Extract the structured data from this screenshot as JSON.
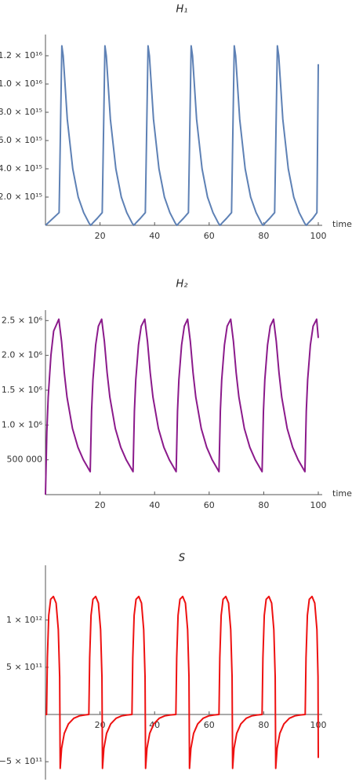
{
  "chart_data": [
    {
      "type": "line",
      "title": "H₁",
      "xlabel": "time",
      "color": "#5e81b5",
      "xlim": [
        0,
        100
      ],
      "ylim": [
        0,
        1.35e+16
      ],
      "xticks": [
        20,
        40,
        60,
        80,
        100
      ],
      "yticks": [
        {
          "value": 2000000000000000.0,
          "label": "2.0 × 10¹⁵"
        },
        {
          "value": 4000000000000000.0,
          "label": "4.0 × 10¹⁵"
        },
        {
          "value": 6000000000000000.0,
          "label": "6.0 × 10¹⁵"
        },
        {
          "value": 8000000000000000.0,
          "label": "8.0 × 10¹⁵"
        },
        {
          "value": 1e+16,
          "label": "1.0 × 10¹⁶"
        },
        {
          "value": 1.2e+16,
          "label": "1.2 × 10¹⁶"
        }
      ],
      "x": [
        0,
        5,
        6,
        6.5,
        7,
        8,
        10,
        12,
        14,
        16,
        16.6,
        17.5,
        19,
        20.8,
        21.8,
        22.3,
        22.8,
        23.8,
        25.8,
        27.8,
        29.8,
        31.8,
        32.4,
        33.3,
        34.8,
        36.6,
        37.6,
        38.1,
        38.6,
        39.6,
        41.6,
        43.6,
        45.6,
        47.6,
        48.2,
        49.1,
        50.6,
        52.4,
        53.4,
        53.9,
        54.4,
        55.4,
        57.4,
        59.4,
        61.4,
        63.4,
        64,
        64.9,
        66.4,
        68.2,
        69.2,
        69.7,
        70.2,
        71.2,
        73.2,
        75.2,
        77.2,
        79.2,
        79.8,
        80.7,
        82.2,
        84,
        85,
        85.5,
        86,
        87,
        89,
        91,
        93,
        95,
        95.6,
        96.5,
        98,
        99.5,
        100
      ],
      "values": [
        0,
        900000000000000.0,
        1.27e+16,
        1.2e+16,
        1.05e+16,
        7500000000000000.0,
        4000000000000000.0,
        2000000000000000.0,
        900000000000000.0,
        150000000000000.0,
        0,
        200000000000000.0,
        500000000000000.0,
        900000000000000.0,
        1.27e+16,
        1.2e+16,
        1.05e+16,
        7500000000000000.0,
        4000000000000000.0,
        2000000000000000.0,
        900000000000000.0,
        150000000000000.0,
        0,
        200000000000000.0,
        500000000000000.0,
        900000000000000.0,
        1.27e+16,
        1.2e+16,
        1.05e+16,
        7500000000000000.0,
        4000000000000000.0,
        2000000000000000.0,
        900000000000000.0,
        150000000000000.0,
        0,
        200000000000000.0,
        500000000000000.0,
        900000000000000.0,
        1.27e+16,
        1.2e+16,
        1.05e+16,
        7500000000000000.0,
        4000000000000000.0,
        2000000000000000.0,
        900000000000000.0,
        150000000000000.0,
        0,
        200000000000000.0,
        500000000000000.0,
        900000000000000.0,
        1.27e+16,
        1.2e+16,
        1.05e+16,
        7500000000000000.0,
        4000000000000000.0,
        2000000000000000.0,
        900000000000000.0,
        150000000000000.0,
        0,
        200000000000000.0,
        500000000000000.0,
        900000000000000.0,
        1.27e+16,
        1.2e+16,
        1.05e+16,
        7500000000000000.0,
        4000000000000000.0,
        2000000000000000.0,
        900000000000000.0,
        150000000000000.0,
        0,
        200000000000000.0,
        500000000000000.0,
        900000000000000.0,
        1.14e+16
      ]
    },
    {
      "type": "line",
      "title": "H₂",
      "xlabel": "time",
      "color": "#8b1a8b",
      "xlim": [
        0,
        100
      ],
      "ylim": [
        0,
        2650000.0
      ],
      "xticks": [
        20,
        40,
        60,
        80,
        100
      ],
      "yticks": [
        {
          "value": 500000,
          "label": "500 000"
        },
        {
          "value": 1000000,
          "label": "1.0 × 10⁶"
        },
        {
          "value": 1500000,
          "label": "1.5 × 10⁶"
        },
        {
          "value": 2000000,
          "label": "2.0 × 10⁶"
        },
        {
          "value": 2500000,
          "label": "2.5 × 10⁶"
        }
      ],
      "x": [
        0,
        0.5,
        1,
        2,
        3,
        4.9,
        5.9,
        6.9,
        7.9,
        9.9,
        11.9,
        13.9,
        16.4,
        16.9,
        17.4,
        18.4,
        19.4,
        20.6,
        21.6,
        22.6,
        23.6,
        25.6,
        27.6,
        29.6,
        32.1,
        32.6,
        33.1,
        34.1,
        35.1,
        36.4,
        37.4,
        38.4,
        39.4,
        41.4,
        43.4,
        45.4,
        47.9,
        48.4,
        48.9,
        49.9,
        50.9,
        52.1,
        53.1,
        54.1,
        55.1,
        57.1,
        59.1,
        61.1,
        63.6,
        64.1,
        64.6,
        65.6,
        66.6,
        67.9,
        68.9,
        69.9,
        70.9,
        72.9,
        74.9,
        76.9,
        79.4,
        79.9,
        80.4,
        81.4,
        82.4,
        83.6,
        84.6,
        85.6,
        86.6,
        88.6,
        90.6,
        92.6,
        95.1,
        95.6,
        96.1,
        97.1,
        98.1,
        99.4,
        100
      ],
      "values": [
        0,
        900000,
        1400000,
        2000000,
        2350000,
        2520000,
        2200000,
        1750000,
        1400000,
        950000,
        680000,
        500000,
        330000,
        1200000,
        1650000,
        2150000,
        2420000,
        2520000,
        2200000,
        1750000,
        1400000,
        950000,
        680000,
        500000,
        330000,
        1200000,
        1650000,
        2150000,
        2420000,
        2520000,
        2200000,
        1750000,
        1400000,
        950000,
        680000,
        500000,
        330000,
        1200000,
        1650000,
        2150000,
        2420000,
        2520000,
        2200000,
        1750000,
        1400000,
        950000,
        680000,
        500000,
        330000,
        1200000,
        1650000,
        2150000,
        2420000,
        2520000,
        2200000,
        1750000,
        1400000,
        950000,
        680000,
        500000,
        330000,
        1200000,
        1650000,
        2150000,
        2420000,
        2520000,
        2200000,
        1750000,
        1400000,
        950000,
        680000,
        500000,
        330000,
        1200000,
        1650000,
        2150000,
        2420000,
        2520000,
        2250000
      ]
    },
    {
      "type": "line",
      "title": "S",
      "color": "#ee1111",
      "xlim": [
        0,
        100
      ],
      "ylim": [
        -690000000000.0,
        1580000000000.0
      ],
      "xticks": [
        20,
        40,
        60,
        80,
        100
      ],
      "yticks": [
        {
          "value": -500000000000.0,
          "label": "−5 × 10¹¹"
        },
        {
          "value": 500000000000.0,
          "label": "5 × 10¹¹"
        },
        {
          "value": 1000000000000.0,
          "label": "1 × 10¹²"
        }
      ],
      "x": [
        0,
        0.4,
        0.7,
        1.2,
        1.9,
        2.9,
        3.9,
        4.7,
        5.2,
        5.4,
        5.9,
        6.9,
        8.4,
        10.4,
        12.4,
        14.4,
        15.9,
        16.2,
        16.7,
        17.4,
        18.4,
        19.4,
        20.2,
        20.7,
        20.9,
        21.4,
        22.4,
        23.9,
        25.9,
        27.9,
        29.9,
        31.7,
        32,
        32.5,
        33.2,
        34.2,
        35.2,
        36,
        36.5,
        36.7,
        37.2,
        38.2,
        39.7,
        41.7,
        43.7,
        45.7,
        47.8,
        48.1,
        48.6,
        49.3,
        50.3,
        51.3,
        52.1,
        52.6,
        52.8,
        53.3,
        54.3,
        55.8,
        57.8,
        59.8,
        61.8,
        63.6,
        63.9,
        64.4,
        65.1,
        66.1,
        67.1,
        67.9,
        68.4,
        68.6,
        69.1,
        70.1,
        71.6,
        73.6,
        75.6,
        77.6,
        79.4,
        79.7,
        80.2,
        80.9,
        81.9,
        82.9,
        83.7,
        84.2,
        84.4,
        84.9,
        85.9,
        87.4,
        89.4,
        91.4,
        93.4,
        95.2,
        95.5,
        96,
        96.7,
        97.7,
        98.7,
        99.5,
        99.9,
        100
      ],
      "values": [
        0,
        0,
        600000000000.0,
        1050000000000.0,
        1220000000000.0,
        1250000000000.0,
        1180000000000.0,
        900000000000.0,
        400000000000.0,
        -570000000000.0,
        -360000000000.0,
        -200000000000.0,
        -100000000000.0,
        -40000000000.0,
        -15000000000.0,
        -5000000000.0,
        0,
        600000000000.0,
        1050000000000.0,
        1220000000000.0,
        1250000000000.0,
        1180000000000.0,
        900000000000.0,
        400000000000.0,
        -570000000000.0,
        -360000000000.0,
        -200000000000.0,
        -100000000000.0,
        -40000000000.0,
        -15000000000.0,
        -5000000000.0,
        0,
        600000000000.0,
        1050000000000.0,
        1220000000000.0,
        1250000000000.0,
        1180000000000.0,
        900000000000.0,
        400000000000.0,
        -570000000000.0,
        -360000000000.0,
        -200000000000.0,
        -100000000000.0,
        -40000000000.0,
        -15000000000.0,
        -5000000000.0,
        0,
        600000000000.0,
        1050000000000.0,
        1220000000000.0,
        1250000000000.0,
        1180000000000.0,
        900000000000.0,
        400000000000.0,
        -570000000000.0,
        -360000000000.0,
        -200000000000.0,
        -100000000000.0,
        -40000000000.0,
        -15000000000.0,
        -5000000000.0,
        0,
        600000000000.0,
        1050000000000.0,
        1220000000000.0,
        1250000000000.0,
        1180000000000.0,
        900000000000.0,
        400000000000.0,
        -570000000000.0,
        -360000000000.0,
        -200000000000.0,
        -100000000000.0,
        -40000000000.0,
        -15000000000.0,
        -5000000000.0,
        0,
        600000000000.0,
        1050000000000.0,
        1220000000000.0,
        1250000000000.0,
        1180000000000.0,
        900000000000.0,
        400000000000.0,
        -570000000000.0,
        -360000000000.0,
        -200000000000.0,
        -100000000000.0,
        -40000000000.0,
        -15000000000.0,
        -5000000000.0,
        0,
        600000000000.0,
        1050000000000.0,
        1220000000000.0,
        1250000000000.0,
        1180000000000.0,
        900000000000.0,
        400000000000.0,
        -460000000000.0
      ]
    }
  ]
}
